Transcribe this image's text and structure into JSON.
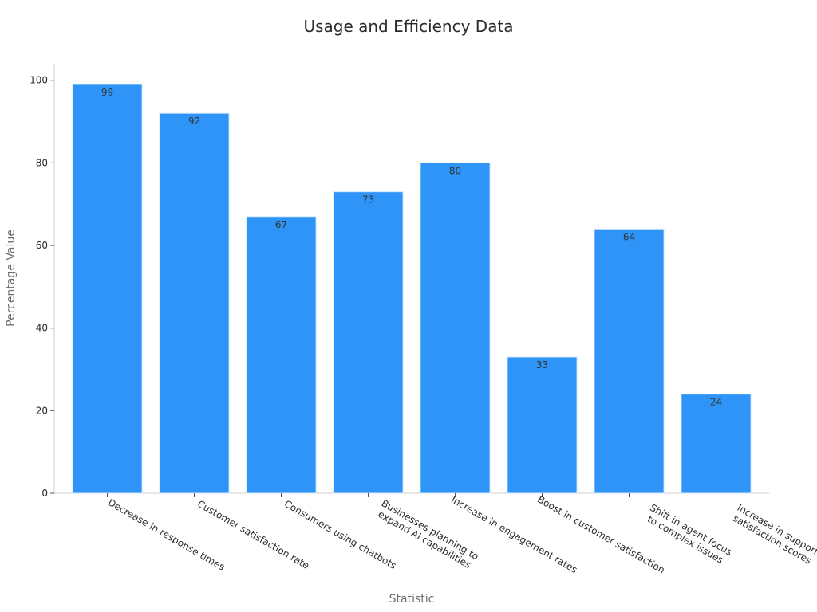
{
  "chart_data": {
    "type": "bar",
    "title": "Usage and Efficiency Data",
    "xlabel": "Statistic",
    "ylabel": "Percentage Value",
    "categories": [
      [
        "Decrease in response times"
      ],
      [
        "Customer satisfaction rate"
      ],
      [
        "Consumers using chatbots"
      ],
      [
        "Businesses planning to",
        "expand AI capabilities"
      ],
      [
        "Increase in engagement rates"
      ],
      [
        "Boost in customer satisfaction"
      ],
      [
        "Shift in agent focus",
        "to complex issues"
      ],
      [
        "Increase in support",
        "satisfaction scores"
      ]
    ],
    "values": [
      99,
      92,
      67,
      73,
      80,
      33,
      64,
      24
    ],
    "ylim": [
      0,
      104
    ],
    "yticks": [
      0,
      20,
      40,
      60,
      80,
      100
    ],
    "grid": false,
    "bar_color": "#2e94f7",
    "bar_edge_color": "#d6e9fb"
  }
}
